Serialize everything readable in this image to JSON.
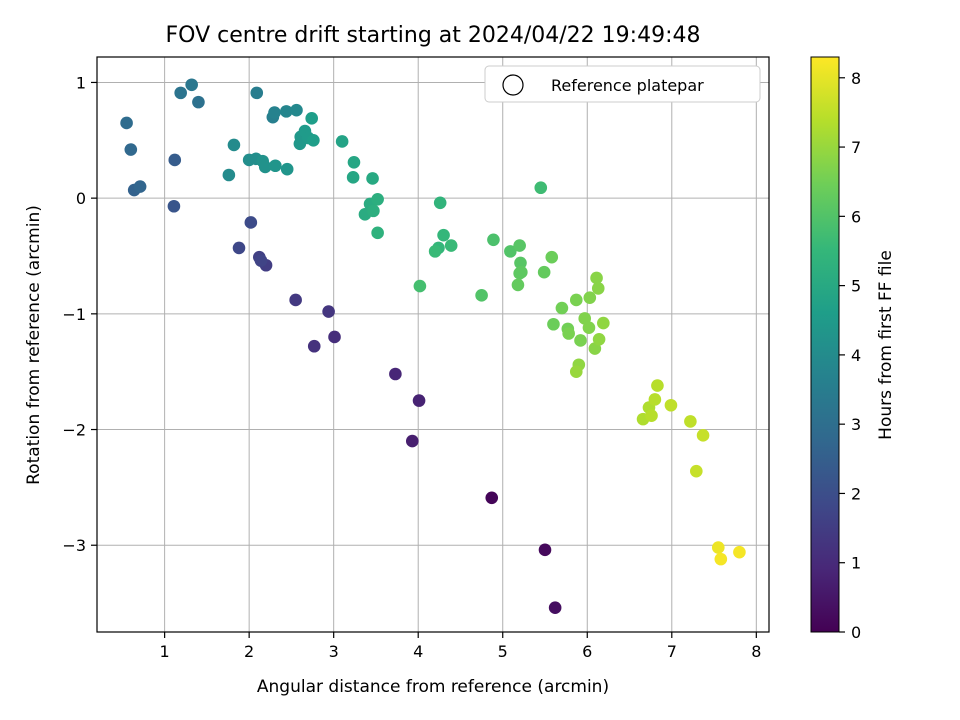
{
  "chart_data": {
    "type": "scatter",
    "title": "FOV centre drift starting at 2024/04/22 19:49:48",
    "xlabel": "Angular distance from reference (arcmin)",
    "ylabel": "Rotation from reference (arcmin)",
    "xlim": [
      0.2,
      8.15
    ],
    "ylim": [
      -3.75,
      1.22
    ],
    "x_ticks": [
      1,
      2,
      3,
      4,
      5,
      6,
      7,
      8
    ],
    "y_ticks": [
      1,
      0,
      -1,
      -2,
      -3
    ],
    "y_tick_labels": [
      "1",
      "0",
      "−1",
      "−2",
      "−3"
    ],
    "grid": true,
    "legend": {
      "placement": "top-right",
      "entries": [
        "Reference platepar"
      ]
    },
    "colorbar": {
      "label": "Hours from first FF file",
      "range": [
        0,
        8.3
      ],
      "ticks": [
        "0",
        "1",
        "2",
        "3",
        "4",
        "5",
        "6",
        "7",
        "8"
      ],
      "colormap": [
        "#440154",
        "#482878",
        "#3e4989",
        "#31688e",
        "#26828e",
        "#1f9e89",
        "#35b779",
        "#6ece58",
        "#b5de2b",
        "#fde725"
      ]
    },
    "points": [
      {
        "x": 4.87,
        "y": -2.59,
        "c": 0.1
      },
      {
        "x": 5.5,
        "y": -3.04,
        "c": 0.2
      },
      {
        "x": 5.62,
        "y": -3.54,
        "c": 0.3
      },
      {
        "x": 3.93,
        "y": -2.1,
        "c": 0.7
      },
      {
        "x": 4.01,
        "y": -1.75,
        "c": 0.8
      },
      {
        "x": 3.73,
        "y": -1.52,
        "c": 0.9
      },
      {
        "x": 3.01,
        "y": -1.2,
        "c": 1.1
      },
      {
        "x": 2.77,
        "y": -1.28,
        "c": 1.2
      },
      {
        "x": 2.94,
        "y": -0.98,
        "c": 1.3
      },
      {
        "x": 2.55,
        "y": -0.88,
        "c": 1.4
      },
      {
        "x": 2.2,
        "y": -0.58,
        "c": 1.5
      },
      {
        "x": 2.12,
        "y": -0.51,
        "c": 1.6
      },
      {
        "x": 2.14,
        "y": -0.54,
        "c": 1.7
      },
      {
        "x": 1.88,
        "y": -0.43,
        "c": 1.8
      },
      {
        "x": 2.02,
        "y": -0.21,
        "c": 1.9
      },
      {
        "x": 1.11,
        "y": -0.07,
        "c": 2.2
      },
      {
        "x": 1.12,
        "y": 0.33,
        "c": 2.4
      },
      {
        "x": 0.64,
        "y": 0.07,
        "c": 2.6
      },
      {
        "x": 0.71,
        "y": 0.1,
        "c": 2.7
      },
      {
        "x": 0.6,
        "y": 0.42,
        "c": 2.8
      },
      {
        "x": 0.55,
        "y": 0.65,
        "c": 2.9
      },
      {
        "x": 1.4,
        "y": 0.83,
        "c": 3.1
      },
      {
        "x": 1.19,
        "y": 0.91,
        "c": 3.2
      },
      {
        "x": 1.32,
        "y": 0.98,
        "c": 3.3
      },
      {
        "x": 2.09,
        "y": 0.91,
        "c": 3.5
      },
      {
        "x": 2.28,
        "y": 0.7,
        "c": 3.6
      },
      {
        "x": 2.3,
        "y": 0.74,
        "c": 3.7
      },
      {
        "x": 2.44,
        "y": 0.75,
        "c": 3.8
      },
      {
        "x": 2.56,
        "y": 0.76,
        "c": 3.9
      },
      {
        "x": 1.76,
        "y": 0.2,
        "c": 4.0
      },
      {
        "x": 1.82,
        "y": 0.46,
        "c": 4.0
      },
      {
        "x": 2.0,
        "y": 0.33,
        "c": 4.1
      },
      {
        "x": 2.08,
        "y": 0.34,
        "c": 4.1
      },
      {
        "x": 2.16,
        "y": 0.32,
        "c": 4.2
      },
      {
        "x": 2.19,
        "y": 0.27,
        "c": 4.2
      },
      {
        "x": 2.31,
        "y": 0.28,
        "c": 4.3
      },
      {
        "x": 2.45,
        "y": 0.25,
        "c": 4.3
      },
      {
        "x": 2.6,
        "y": 0.47,
        "c": 4.4
      },
      {
        "x": 2.61,
        "y": 0.53,
        "c": 4.4
      },
      {
        "x": 2.66,
        "y": 0.58,
        "c": 4.5
      },
      {
        "x": 2.7,
        "y": 0.52,
        "c": 4.5
      },
      {
        "x": 2.76,
        "y": 0.5,
        "c": 4.6
      },
      {
        "x": 2.74,
        "y": 0.69,
        "c": 4.6
      },
      {
        "x": 3.1,
        "y": 0.49,
        "c": 4.8
      },
      {
        "x": 3.24,
        "y": 0.31,
        "c": 4.9
      },
      {
        "x": 3.23,
        "y": 0.18,
        "c": 4.9
      },
      {
        "x": 3.46,
        "y": 0.17,
        "c": 5.0
      },
      {
        "x": 3.37,
        "y": -0.14,
        "c": 5.1
      },
      {
        "x": 3.43,
        "y": -0.05,
        "c": 5.1
      },
      {
        "x": 3.47,
        "y": -0.11,
        "c": 5.2
      },
      {
        "x": 3.52,
        "y": -0.01,
        "c": 5.2
      },
      {
        "x": 3.52,
        "y": -0.3,
        "c": 5.3
      },
      {
        "x": 4.26,
        "y": -0.04,
        "c": 5.4
      },
      {
        "x": 4.3,
        "y": -0.32,
        "c": 5.5
      },
      {
        "x": 4.24,
        "y": -0.43,
        "c": 5.5
      },
      {
        "x": 4.2,
        "y": -0.46,
        "c": 5.6
      },
      {
        "x": 4.39,
        "y": -0.41,
        "c": 5.6
      },
      {
        "x": 4.02,
        "y": -0.76,
        "c": 5.8
      },
      {
        "x": 5.45,
        "y": 0.09,
        "c": 5.7
      },
      {
        "x": 4.89,
        "y": -0.36,
        "c": 5.9
      },
      {
        "x": 4.75,
        "y": -0.84,
        "c": 6.0
      },
      {
        "x": 5.09,
        "y": -0.46,
        "c": 6.0
      },
      {
        "x": 5.2,
        "y": -0.41,
        "c": 6.1
      },
      {
        "x": 5.21,
        "y": -0.56,
        "c": 6.1
      },
      {
        "x": 5.2,
        "y": -0.65,
        "c": 6.2
      },
      {
        "x": 5.22,
        "y": -0.64,
        "c": 6.2
      },
      {
        "x": 5.18,
        "y": -0.75,
        "c": 6.3
      },
      {
        "x": 5.49,
        "y": -0.64,
        "c": 6.3
      },
      {
        "x": 5.58,
        "y": -0.51,
        "c": 6.4
      },
      {
        "x": 5.6,
        "y": -1.09,
        "c": 6.4
      },
      {
        "x": 5.7,
        "y": -0.95,
        "c": 6.5
      },
      {
        "x": 5.77,
        "y": -1.13,
        "c": 6.5
      },
      {
        "x": 5.78,
        "y": -1.17,
        "c": 6.6
      },
      {
        "x": 5.87,
        "y": -0.88,
        "c": 6.6
      },
      {
        "x": 5.92,
        "y": -1.23,
        "c": 6.6
      },
      {
        "x": 5.97,
        "y": -1.04,
        "c": 6.7
      },
      {
        "x": 6.02,
        "y": -1.12,
        "c": 6.7
      },
      {
        "x": 6.03,
        "y": -0.86,
        "c": 6.7
      },
      {
        "x": 6.09,
        "y": -1.3,
        "c": 6.8
      },
      {
        "x": 6.11,
        "y": -0.69,
        "c": 6.8
      },
      {
        "x": 6.13,
        "y": -0.78,
        "c": 6.8
      },
      {
        "x": 6.14,
        "y": -1.22,
        "c": 6.9
      },
      {
        "x": 6.19,
        "y": -1.08,
        "c": 6.9
      },
      {
        "x": 5.9,
        "y": -1.44,
        "c": 6.9
      },
      {
        "x": 5.87,
        "y": -1.5,
        "c": 7.0
      },
      {
        "x": 6.66,
        "y": -1.91,
        "c": 7.3
      },
      {
        "x": 6.73,
        "y": -1.81,
        "c": 7.3
      },
      {
        "x": 6.76,
        "y": -1.88,
        "c": 7.4
      },
      {
        "x": 6.8,
        "y": -1.74,
        "c": 7.4
      },
      {
        "x": 6.83,
        "y": -1.62,
        "c": 7.4
      },
      {
        "x": 6.99,
        "y": -1.79,
        "c": 7.5
      },
      {
        "x": 7.22,
        "y": -1.93,
        "c": 7.5
      },
      {
        "x": 7.37,
        "y": -2.05,
        "c": 7.6
      },
      {
        "x": 7.29,
        "y": -2.36,
        "c": 7.6
      },
      {
        "x": 7.55,
        "y": -3.02,
        "c": 8.1
      },
      {
        "x": 7.58,
        "y": -3.12,
        "c": 8.2
      },
      {
        "x": 7.8,
        "y": -3.06,
        "c": 8.2
      }
    ]
  }
}
